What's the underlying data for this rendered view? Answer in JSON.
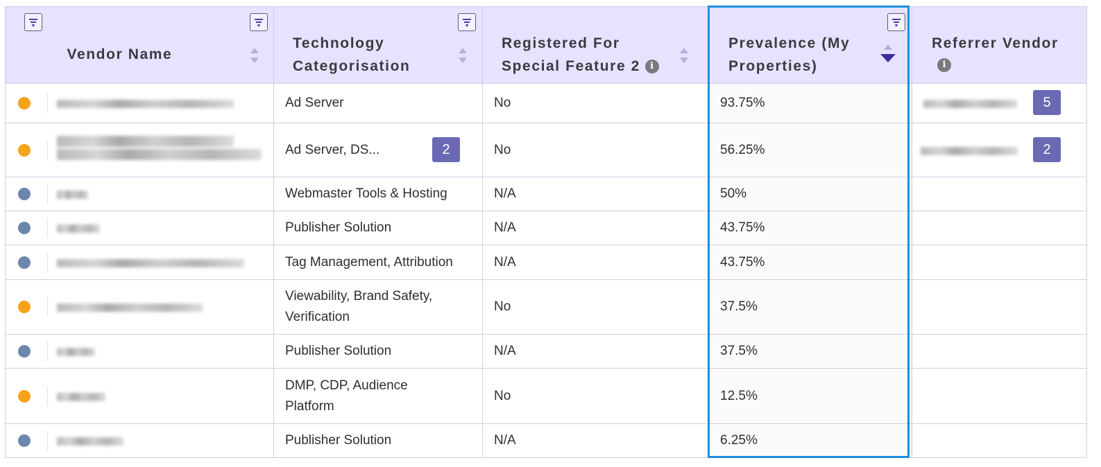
{
  "columns": {
    "vendor_name": "Vendor Name",
    "technology": [
      "Technology",
      "Categorisation"
    ],
    "registered": [
      "Registered For",
      "Special Feature 2"
    ],
    "prevalence": [
      "Prevalence (My",
      "Properties)"
    ],
    "referrer": "Referrer Vendor",
    "info_glyph": "i"
  },
  "colors": {
    "header_bg": "#e7e2ff",
    "highlight_border": "#1a90e0",
    "badge": "#6b69b4",
    "status_orange": "#f7a21b",
    "status_blue": "#6d86ad"
  },
  "sort": {
    "column": "prevalence",
    "direction": "descending"
  },
  "rows": [
    {
      "status": "orange",
      "technology": "Ad Server",
      "technology_badge": "",
      "registered": "No",
      "prevalence": "93.75%",
      "referrer_badge": "5"
    },
    {
      "status": "orange",
      "technology": "Ad Server, DS...",
      "technology_badge": "2",
      "registered": "No",
      "prevalence": "56.25%",
      "referrer_badge": "2"
    },
    {
      "status": "blue",
      "technology": "Webmaster Tools & Hosting",
      "technology_badge": "",
      "registered": "N/A",
      "prevalence": "50%",
      "referrer_badge": ""
    },
    {
      "status": "blue",
      "technology": "Publisher Solution",
      "technology_badge": "",
      "registered": "N/A",
      "prevalence": "43.75%",
      "referrer_badge": ""
    },
    {
      "status": "blue",
      "technology": "Tag Management, Attribution",
      "technology_badge": "",
      "registered": "N/A",
      "prevalence": "43.75%",
      "referrer_badge": ""
    },
    {
      "status": "orange",
      "technology": "Viewability, Brand Safety, Verification",
      "technology_badge": "",
      "registered": "No",
      "prevalence": "37.5%",
      "referrer_badge": ""
    },
    {
      "status": "blue",
      "technology": "Publisher Solution",
      "technology_badge": "",
      "registered": "N/A",
      "prevalence": "37.5%",
      "referrer_badge": ""
    },
    {
      "status": "orange",
      "technology": "DMP, CDP, Audience Platform",
      "technology_badge": "",
      "registered": "No",
      "prevalence": "12.5%",
      "referrer_badge": ""
    },
    {
      "status": "blue",
      "technology": "Publisher Solution",
      "technology_badge": "",
      "registered": "N/A",
      "prevalence": "6.25%",
      "referrer_badge": ""
    }
  ]
}
